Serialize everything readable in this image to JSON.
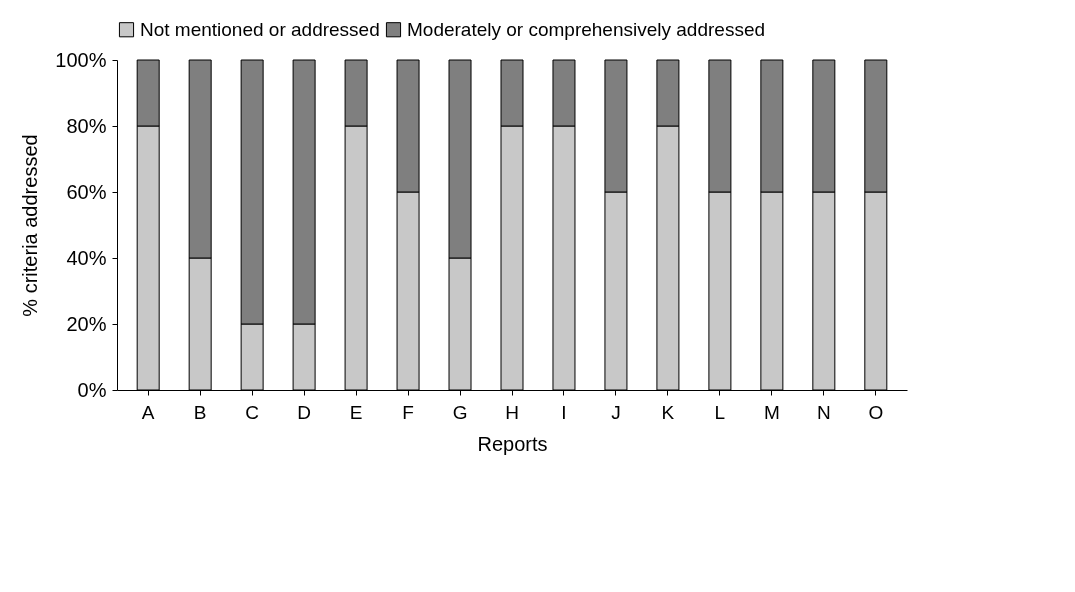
{
  "chart_data": {
    "type": "bar",
    "stacked": true,
    "xlabel": "Reports",
    "ylabel": "% criteria addressed",
    "categories": [
      "A",
      "B",
      "C",
      "D",
      "E",
      "F",
      "G",
      "H",
      "I",
      "J",
      "K",
      "L",
      "M",
      "N",
      "O"
    ],
    "series": [
      {
        "name": "Not mentioned or addressed",
        "color": "#c8c8c8",
        "values": [
          80,
          40,
          20,
          20,
          80,
          60,
          40,
          80,
          80,
          60,
          80,
          60,
          60,
          60,
          60
        ]
      },
      {
        "name": "Moderately or comprehensively addressed",
        "color": "#7f7f7f",
        "values": [
          20,
          60,
          80,
          80,
          20,
          40,
          60,
          20,
          20,
          40,
          20,
          40,
          40,
          40,
          40
        ]
      }
    ],
    "ylim": [
      0,
      100
    ],
    "yticks": [
      {
        "value": 0,
        "label": "0%"
      },
      {
        "value": 20,
        "label": "20%"
      },
      {
        "value": 40,
        "label": "40%"
      },
      {
        "value": 60,
        "label": "60%"
      },
      {
        "value": 80,
        "label": "80%"
      },
      {
        "value": 100,
        "label": "100%"
      }
    ],
    "grid": false,
    "legend": "top"
  }
}
